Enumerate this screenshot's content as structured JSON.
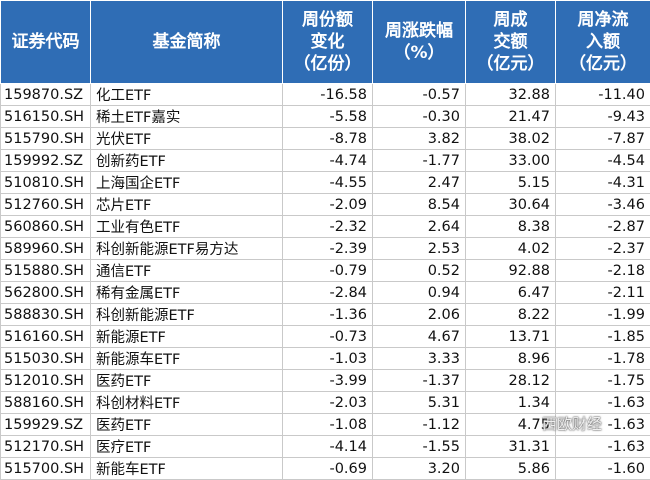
{
  "table": {
    "header": [
      [
        "证券代码"
      ],
      [
        "基金简称"
      ],
      [
        "周份额",
        "变化",
        "（亿份）"
      ],
      [
        "周涨跌幅",
        "（%）"
      ],
      [
        "周成",
        "交额",
        "（亿元）"
      ],
      [
        "周净流",
        "入额",
        "（亿元）"
      ]
    ],
    "rows": [
      [
        "159870.SZ",
        "化工ETF",
        "-16.58",
        "-0.57",
        "32.88",
        "-11.40"
      ],
      [
        "516150.SH",
        "稀土ETF嘉实",
        "-5.58",
        "-0.30",
        "21.47",
        "-9.43"
      ],
      [
        "515790.SH",
        "光伏ETF",
        "-8.78",
        "3.82",
        "38.02",
        "-7.87"
      ],
      [
        "159992.SZ",
        "创新药ETF",
        "-4.74",
        "-1.77",
        "33.00",
        "-4.54"
      ],
      [
        "510810.SH",
        "上海国企ETF",
        "-4.55",
        "2.47",
        "5.15",
        "-4.31"
      ],
      [
        "512760.SH",
        "芯片ETF",
        "-2.09",
        "8.54",
        "30.64",
        "-3.46"
      ],
      [
        "560860.SH",
        "工业有色ETF",
        "-2.32",
        "2.64",
        "8.38",
        "-2.87"
      ],
      [
        "589960.SH",
        "科创新能源ETF易方达",
        "-2.39",
        "2.53",
        "4.02",
        "-2.37"
      ],
      [
        "515880.SH",
        "通信ETF",
        "-0.79",
        "0.52",
        "92.88",
        "-2.18"
      ],
      [
        "562800.SH",
        "稀有金属ETF",
        "-2.84",
        "0.94",
        "6.47",
        "-2.11"
      ],
      [
        "588830.SH",
        "科创新能源ETF",
        "-1.36",
        "2.06",
        "8.22",
        "-1.99"
      ],
      [
        "516160.SH",
        "新能源ETF",
        "-0.73",
        "4.67",
        "13.71",
        "-1.85"
      ],
      [
        "515030.SH",
        "新能源车ETF",
        "-1.03",
        "3.33",
        "8.96",
        "-1.78"
      ],
      [
        "512010.SH",
        "医药ETF",
        "-3.99",
        "-1.37",
        "28.12",
        "-1.75"
      ],
      [
        "588160.SH",
        "科创材料ETF",
        "-2.03",
        "5.31",
        "1.34",
        "-1.63"
      ],
      [
        "159929.SZ",
        "医药ETF",
        "-1.08",
        "-1.12",
        "4.75",
        "-1.63"
      ],
      [
        "512170.SH",
        "医疗ETF",
        "-4.14",
        "-1.55",
        "31.31",
        "-1.63"
      ],
      [
        "515700.SH",
        "新能车ETF",
        "-0.69",
        "3.20",
        "5.86",
        "-1.60"
      ]
    ]
  },
  "watermark": "西欧财经"
}
